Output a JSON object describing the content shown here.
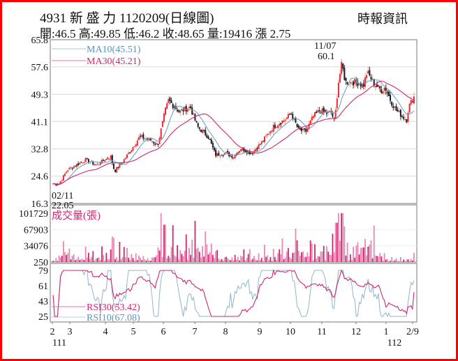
{
  "header": {
    "title": "4931  新 盛 力 1120209(日線圖)",
    "stats": "開:46.5 高:49.85 低:46.2 收:48.65 量:19416 漲 2.75",
    "brand": "時報資訊"
  },
  "colors": {
    "border": "#ff0000",
    "up_candle": "#e8273a",
    "down_candle": "#1a1a1a",
    "up_wick_light": "#f0a080",
    "ma10": "#6fa3c9",
    "ma30": "#d0266f",
    "volume": "#d0266f",
    "volume_fill": "#e58ab4",
    "rsi30": "#d0266f",
    "rsi10": "#8fb4cc",
    "grid": "#d9d9d9",
    "axis": "#777777"
  },
  "legend": {
    "ma10": "MA10(45.51)",
    "ma30": "MA30(45.21)",
    "volume": "成交量(張)",
    "rsi30": "RSI30(53.42)",
    "rsi10": "RSI10(67.08)"
  },
  "annotations": {
    "high_date": "11/07",
    "high_value": "60.1",
    "low_date": "02/11",
    "low_value": "22.05"
  },
  "axes": {
    "price_ticks": [
      "65.8",
      "57.6",
      "49.3",
      "41.1",
      "32.8",
      "24.6",
      "16.3"
    ],
    "volume_ticks": [
      "101729",
      "67903",
      "34076",
      "250"
    ],
    "rsi_ticks": [
      "79",
      "61",
      "43",
      "25"
    ],
    "x_ticks": [
      "2",
      "3",
      "4",
      "5",
      "6",
      "7",
      "8",
      "9",
      "10",
      "11",
      "12",
      "1",
      "2/9"
    ],
    "x_year_labels": [
      {
        "label": "111",
        "under": "2"
      },
      {
        "label": "112",
        "under": "1"
      }
    ]
  },
  "chart_data": {
    "type": "candlestick",
    "title": "4931 新盛力 1120209 (日線圖)",
    "subtitle": "開:46.5 高:49.85 低:46.2 收:48.65 量:19416 漲 2.75",
    "xlabel": "",
    "ylabel": "",
    "date_range": [
      "111/02/11",
      "112/02/09"
    ],
    "ohlc_last": {
      "open": 46.5,
      "high": 49.85,
      "low": 46.2,
      "close": 48.65,
      "volume": 19416,
      "change": 2.75
    },
    "price_ylim": [
      16.3,
      65.8
    ],
    "price_ticks": [
      65.8,
      57.6,
      49.3,
      41.1,
      32.8,
      24.6,
      16.3
    ],
    "volume_ylim": [
      250,
      101729
    ],
    "volume_ticks": [
      101729,
      67903,
      34076,
      250
    ],
    "rsi_ylim": [
      25,
      79
    ],
    "rsi_ticks": [
      79,
      61,
      43,
      25
    ],
    "x_month_ticks": [
      "2",
      "3",
      "4",
      "5",
      "6",
      "7",
      "8",
      "9",
      "10",
      "11",
      "12",
      "1",
      "2/9"
    ],
    "annotations": [
      {
        "label": "02/11 22.05",
        "type": "low",
        "value": 22.05,
        "date": "02/11"
      },
      {
        "label": "11/07 60.1",
        "type": "high",
        "value": 60.1,
        "date": "11/07"
      }
    ],
    "series": [
      {
        "name": "MA10",
        "last": 45.51
      },
      {
        "name": "MA30",
        "last": 45.21
      },
      {
        "name": "RSI30",
        "last": 53.42
      },
      {
        "name": "RSI10",
        "last": 67.08
      }
    ],
    "monthly_close_approx": {
      "categories": [
        "2",
        "3",
        "4",
        "5",
        "6",
        "7",
        "8",
        "9",
        "10",
        "11",
        "12",
        "1",
        "2/9"
      ],
      "values": [
        24.0,
        28.5,
        27.5,
        35.5,
        44.5,
        31.5,
        33.5,
        42.0,
        40.5,
        53.5,
        51.0,
        42.5,
        48.65
      ]
    },
    "legend_position": "top-left",
    "grid": true
  }
}
